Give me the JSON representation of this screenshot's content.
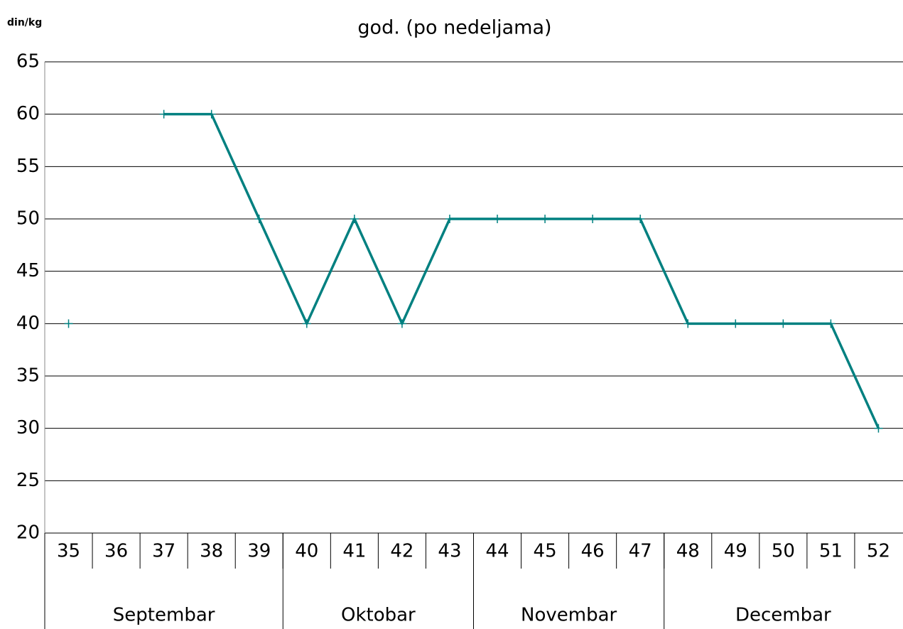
{
  "chart_data": {
    "type": "line",
    "title": "god. (po nedeljama)",
    "y_label": "din/kg",
    "categories": [
      "35",
      "36",
      "37",
      "38",
      "39",
      "40",
      "41",
      "42",
      "43",
      "44",
      "45",
      "46",
      "47",
      "48",
      "49",
      "50",
      "51",
      "52"
    ],
    "groups": [
      {
        "name": "Septembar",
        "span": 5
      },
      {
        "name": "Oktobar",
        "span": 4
      },
      {
        "name": "Novembar",
        "span": 4
      },
      {
        "name": "Decembar",
        "span": 5
      }
    ],
    "series": [
      {
        "name": "din/kg",
        "color": "#008080",
        "values": [
          40,
          null,
          60,
          60,
          50,
          40,
          50,
          40,
          50,
          50,
          50,
          50,
          50,
          40,
          40,
          40,
          40,
          30
        ]
      }
    ],
    "ylim": [
      20,
      65
    ],
    "yticks": [
      20,
      25,
      30,
      35,
      40,
      45,
      50,
      55,
      60,
      65
    ],
    "grid": true
  }
}
